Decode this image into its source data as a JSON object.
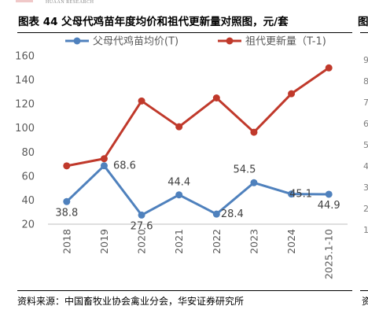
{
  "header": {
    "title": "图表 44  父母代鸡苗年度均价和祖代更新量对照图，元/套",
    "right_glyph": "图",
    "logo_text": "HUAAN RESEARCH"
  },
  "footer": {
    "source": "资料来源：中国畜牧业协会禽业分会，华安证券研究所",
    "right_glyph": "资"
  },
  "right_partial_ticks": [
    "9",
    "8",
    "7",
    "6",
    "5",
    "4",
    "3",
    "2",
    "1"
  ],
  "colors": {
    "blue": "#4f81bd",
    "red": "#c0392b",
    "axis": "#bfbfbf"
  },
  "chart_data": {
    "type": "line",
    "categories": [
      "2018",
      "2019",
      "2020",
      "2021",
      "2022",
      "2023",
      "2024",
      "2025.1-10"
    ],
    "ylim": [
      20,
      160
    ],
    "yticks": [
      20,
      40,
      60,
      80,
      100,
      120,
      140,
      160
    ],
    "grid": false,
    "legend_position": "top",
    "series": [
      {
        "name": "父母代鸡苗均价(T)",
        "color": "#4f81bd",
        "values": [
          38.8,
          68.6,
          27.6,
          44.4,
          28.4,
          54.5,
          45.1,
          44.9
        ],
        "labels": [
          "38.8",
          "68.6",
          "27.6",
          "44.4",
          "28.4",
          "54.5",
          "45.1",
          "44.9"
        ]
      },
      {
        "name": "祖代更新量（T-1)",
        "color": "#c0392b",
        "values": [
          68.5,
          74.5,
          122.5,
          101.0,
          125.0,
          96.5,
          128.5,
          150.0
        ]
      }
    ]
  }
}
